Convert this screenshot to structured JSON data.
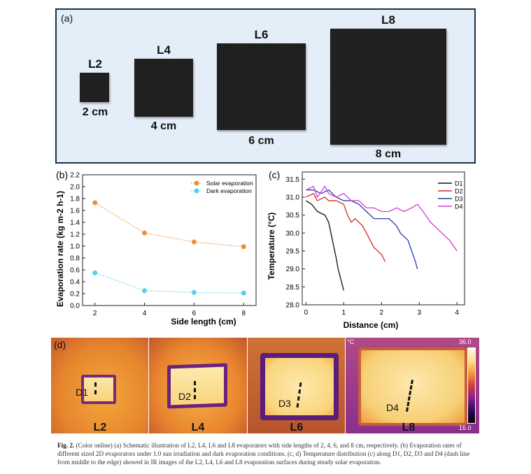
{
  "panel_a": {
    "label": "(a)",
    "evaporators": [
      {
        "name": "L2",
        "size": "2 cm"
      },
      {
        "name": "L4",
        "size": "4 cm"
      },
      {
        "name": "L6",
        "size": "6 cm"
      },
      {
        "name": "L8",
        "size": "8 cm"
      }
    ]
  },
  "panel_b": {
    "label": "(b)",
    "chart_data": {
      "type": "line",
      "x": [
        2,
        4,
        6,
        8
      ],
      "series": [
        {
          "name": "Solar evaporation",
          "color": "#e8913a",
          "values": [
            1.73,
            1.22,
            1.07,
            0.99
          ]
        },
        {
          "name": "Dark evaporation",
          "color": "#4fd3e8",
          "values": [
            0.55,
            0.25,
            0.22,
            0.21
          ]
        }
      ],
      "xlabel": "Side length (cm)",
      "ylabel": "Evaporation rate (kg m-2 h-1)",
      "xticks": [
        "2",
        "4",
        "6",
        "8"
      ],
      "yticks": [
        "0.0",
        "0.2",
        "0.4",
        "0.6",
        "0.8",
        "1.0",
        "1.2",
        "1.4",
        "1.6",
        "1.8",
        "2.0",
        "2.2"
      ],
      "xlim": [
        1.5,
        8.5
      ],
      "ylim": [
        0,
        2.2
      ]
    }
  },
  "panel_c": {
    "label": "(c)",
    "chart_data": {
      "type": "line",
      "xlabel": "Distance (cm)",
      "ylabel": "Temperature (°C)",
      "xticks": [
        "0",
        "1",
        "2",
        "3",
        "4"
      ],
      "yticks": [
        "28.0",
        "28.5",
        "29.0",
        "29.5",
        "30.0",
        "30.5",
        "31.0",
        "31.5"
      ],
      "xlim": [
        -0.1,
        4.2
      ],
      "ylim": [
        28.0,
        31.7
      ],
      "series": [
        {
          "name": "D1",
          "color": "#111111",
          "x": [
            0,
            0.15,
            0.3,
            0.5,
            0.6,
            0.7,
            0.8,
            0.85,
            0.9,
            1.0
          ],
          "values": [
            30.9,
            30.8,
            30.6,
            30.5,
            30.3,
            29.8,
            29.3,
            29.0,
            28.8,
            28.4
          ]
        },
        {
          "name": "D2",
          "color": "#d22b2b",
          "x": [
            0,
            0.2,
            0.3,
            0.5,
            0.6,
            0.8,
            1.0,
            1.1,
            1.2,
            1.3,
            1.5,
            1.6,
            1.8,
            2.0,
            2.1
          ],
          "values": [
            31.0,
            31.1,
            30.9,
            31.0,
            30.9,
            30.9,
            30.8,
            30.5,
            30.3,
            30.4,
            30.2,
            30.0,
            29.6,
            29.4,
            29.2
          ]
        },
        {
          "name": "D3",
          "color": "#1f3fb0",
          "x": [
            0,
            0.2,
            0.4,
            0.6,
            0.8,
            1.0,
            1.2,
            1.4,
            1.6,
            1.8,
            2.0,
            2.2,
            2.4,
            2.5,
            2.7,
            2.8,
            2.9,
            2.95
          ],
          "values": [
            31.2,
            31.2,
            31.1,
            31.2,
            31.0,
            30.9,
            30.9,
            30.8,
            30.6,
            30.4,
            30.4,
            30.4,
            30.2,
            30.0,
            29.8,
            29.5,
            29.2,
            29.0
          ]
        },
        {
          "name": "D4",
          "color": "#d63cd6",
          "x": [
            0,
            0.2,
            0.3,
            0.5,
            0.6,
            0.8,
            1.0,
            1.2,
            1.4,
            1.6,
            1.8,
            2.0,
            2.2,
            2.4,
            2.6,
            2.8,
            2.95,
            3.1,
            3.3,
            3.6,
            3.8,
            4.0
          ],
          "values": [
            31.2,
            31.3,
            31.0,
            31.3,
            31.1,
            31.0,
            31.1,
            30.9,
            30.9,
            30.7,
            30.7,
            30.6,
            30.6,
            30.7,
            30.6,
            30.7,
            30.8,
            30.6,
            30.3,
            30.0,
            29.8,
            29.5
          ]
        }
      ]
    }
  },
  "panel_d": {
    "label": "(d)",
    "colorbar_unit": "°C",
    "colorbar_max": "36.0",
    "colorbar_min": "16.0",
    "images": [
      {
        "name": "L2",
        "line": "D1"
      },
      {
        "name": "L4",
        "line": "D2"
      },
      {
        "name": "L6",
        "line": "D3"
      },
      {
        "name": "L8",
        "line": "D4"
      }
    ]
  },
  "caption": {
    "label": "Fig. 2.",
    "text": "(Color online) (a) Schematic illustration of L2, L4, L6 and L8 evaporators with side lengths of 2, 4, 6, and 8 cm, respectively. (b) Evaporation rates of different sized 2D evaporators under 1.0 sun irradiation and dark evaporation conditions. (c, d) Temperature distribution (c) along D1, D2, D3 and D4 (dash line from middle to the edge) showed in IR images of the L2, L4, L6 and L8 evaporation surfaces during steady solar evaporation."
  }
}
